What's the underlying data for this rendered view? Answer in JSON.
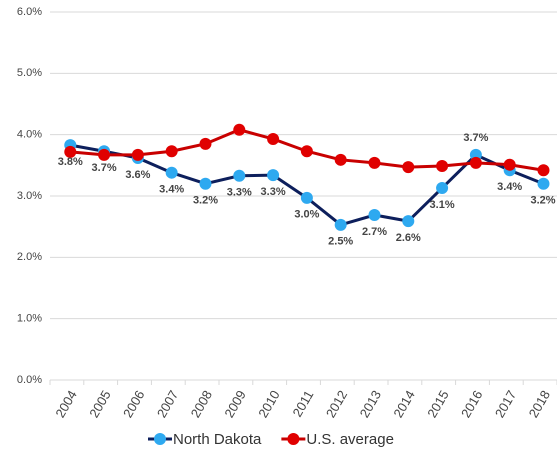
{
  "chart_data": {
    "type": "line",
    "categories": [
      "2004",
      "2005",
      "2006",
      "2007",
      "2008",
      "2009",
      "2010",
      "2011",
      "2012",
      "2013",
      "2014",
      "2015",
      "2016",
      "2017",
      "2018"
    ],
    "series": [
      {
        "name": "North Dakota",
        "color": "#0d1f5c",
        "marker_color": "#2ea9f0",
        "values": [
          3.83,
          3.73,
          3.62,
          3.38,
          3.2,
          3.33,
          3.34,
          2.97,
          2.53,
          2.69,
          2.59,
          3.13,
          3.67,
          3.42,
          3.2
        ],
        "value_labels": [
          "3.8%",
          "3.7%",
          "3.6%",
          "3.4%",
          "3.2%",
          "3.3%",
          "3.3%",
          "3.0%",
          "2.5%",
          "2.7%",
          "2.6%",
          "3.1%",
          "3.7%",
          "3.4%",
          "3.2%"
        ]
      },
      {
        "name": "U.S. average",
        "color": "#c80000",
        "marker_color": "#e00000",
        "values": [
          3.72,
          3.67,
          3.67,
          3.73,
          3.85,
          4.08,
          3.93,
          3.73,
          3.59,
          3.54,
          3.47,
          3.49,
          3.54,
          3.51,
          3.42
        ]
      }
    ],
    "ylim": [
      0,
      6
    ],
    "yticks": [
      {
        "value": 0,
        "label": "0.0%"
      },
      {
        "value": 1,
        "label": "1.0%"
      },
      {
        "value": 2,
        "label": "2.0%"
      },
      {
        "value": 3,
        "label": "3.0%"
      },
      {
        "value": 4,
        "label": "4.0%"
      },
      {
        "value": 5,
        "label": "5.0%"
      },
      {
        "value": 6,
        "label": "6.0%"
      }
    ],
    "grid": true
  }
}
